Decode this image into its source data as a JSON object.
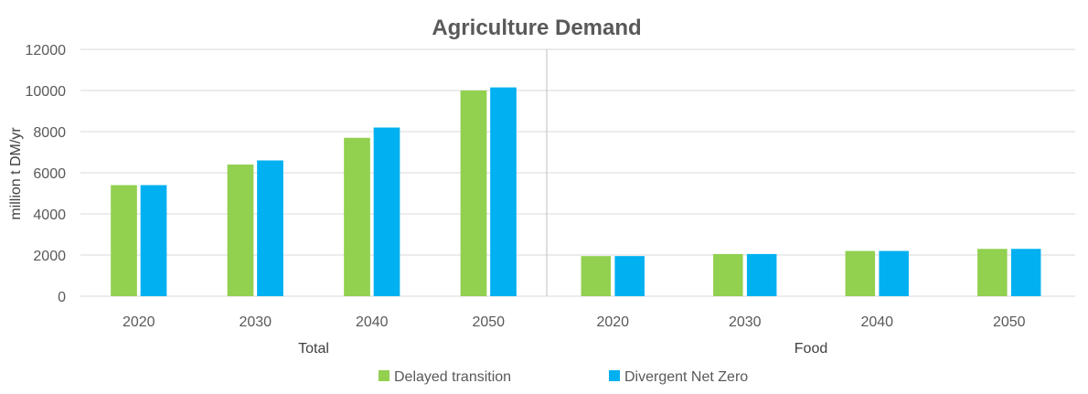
{
  "chart_data": {
    "type": "bar",
    "title": "Agriculture Demand",
    "ylabel": "million t DM/yr",
    "ylim": [
      0,
      12000
    ],
    "yticks": [
      0,
      2000,
      4000,
      6000,
      8000,
      10000,
      12000
    ],
    "grid": true,
    "legend_position": "bottom",
    "series": [
      {
        "name": "Delayed transition",
        "color": "#92d050"
      },
      {
        "name": "Divergent Net Zero",
        "color": "#00b0f0"
      }
    ],
    "panels": [
      {
        "label": "Total",
        "categories": [
          "2020",
          "2030",
          "2040",
          "2050"
        ],
        "values": {
          "Delayed transition": [
            5400,
            6400,
            7700,
            10000
          ],
          "Divergent Net Zero": [
            5400,
            6600,
            8200,
            10150
          ]
        }
      },
      {
        "label": "Food",
        "categories": [
          "2020",
          "2030",
          "2040",
          "2050"
        ],
        "values": {
          "Delayed transition": [
            1950,
            2050,
            2200,
            2300
          ],
          "Divergent Net Zero": [
            1950,
            2050,
            2200,
            2300
          ]
        }
      }
    ]
  }
}
